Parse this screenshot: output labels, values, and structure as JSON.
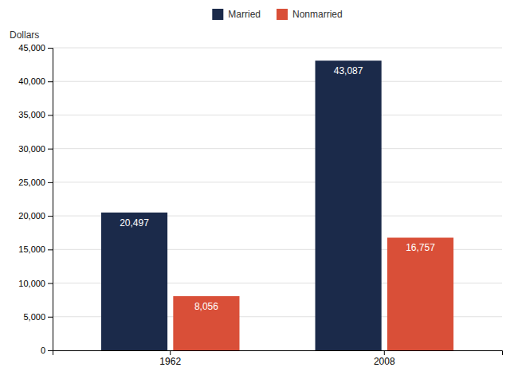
{
  "chart_data": {
    "type": "bar",
    "categories": [
      "1962",
      "2008"
    ],
    "series": [
      {
        "name": "Married",
        "color": "#1b2a4a",
        "values": [
          20497,
          43087
        ],
        "value_labels": [
          "20,497",
          "43,087"
        ]
      },
      {
        "name": "Nonmarried",
        "color": "#d94f38",
        "values": [
          8056,
          16757
        ],
        "value_labels": [
          "8,056",
          "16,757"
        ]
      }
    ],
    "y_label": "Dollars",
    "ylim": [
      0,
      45000
    ],
    "yticks": [
      0,
      {
        "value": 5000,
        "label": "5,000"
      },
      {
        "value": 10000,
        "label": "10,000"
      },
      {
        "value": 15000,
        "label": "15,000"
      },
      {
        "value": 20000,
        "label": "20,000"
      },
      {
        "value": 25000,
        "label": "25,000"
      },
      {
        "value": 30000,
        "label": "30,000"
      },
      {
        "value": 35000,
        "label": "35,000"
      },
      {
        "value": 40000,
        "label": "40,000"
      },
      {
        "value": 45000,
        "label": "45,000"
      }
    ],
    "grid": true,
    "legend": "top",
    "data_labels": true
  }
}
